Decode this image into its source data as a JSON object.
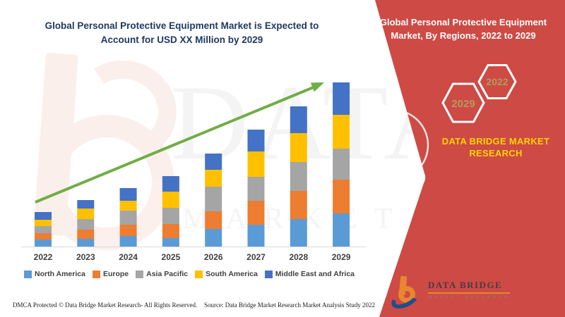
{
  "chart": {
    "title_line1": "Global Personal Protective Equipment Market is Expected to",
    "title_line2": "Account for USD XX Million by 2029",
    "title_color": "#1F3864"
  },
  "banner": {
    "title_line1": "Global Personal Protective Equipment",
    "title_line2": "Market, By Regions, 2022 to 2029",
    "hexagons": [
      "2029",
      "2022"
    ],
    "brand_line1": "DATA BRIDGE MARKET",
    "brand_line2": "RESEARCH",
    "background_color": "#CE4A45",
    "brand_text_color": "#FFD400",
    "hexagon_number_color": "#B59A5B"
  },
  "logo": {
    "name": "DATA BRIDGE",
    "subtitle": "MARKET RESEARCH"
  },
  "watermark": {
    "line1": "DATA BRIDGE",
    "line2": "MARKET RESEARCH"
  },
  "footer": {
    "dmca": "DMCA Protected © Data Bridge Market Research- All Rights Reserved.",
    "source": "Source: Data Bridge Market Research Market Analysis Study 2022"
  },
  "chart_data": {
    "type": "bar",
    "stacked": true,
    "title": "Global Personal Protective Equipment Market is Expected to Account for USD XX Million by 2029",
    "categories": [
      "2022",
      "2023",
      "2024",
      "2025",
      "2026",
      "2027",
      "2028",
      "2029"
    ],
    "series": [
      {
        "name": "North America",
        "color": "#5B9BD5",
        "values": [
          10,
          11,
          15,
          12,
          25,
          31,
          39,
          47
        ]
      },
      {
        "name": "Europe",
        "color": "#ED7D31",
        "values": [
          9,
          13,
          16,
          20,
          25,
          34,
          40,
          48
        ]
      },
      {
        "name": "Asia Pacific",
        "color": "#A5A5A5",
        "values": [
          10,
          15,
          20,
          23,
          35,
          34,
          41,
          44
        ]
      },
      {
        "name": "South America",
        "color": "#FFC000",
        "values": [
          9,
          15,
          14,
          23,
          24,
          36,
          41,
          48
        ]
      },
      {
        "name": "Middle East and Africa",
        "color": "#4472C4",
        "values": [
          11,
          12,
          18,
          22,
          23,
          31,
          38,
          46
        ]
      }
    ],
    "totals": [
      49,
      66,
      83,
      100,
      132,
      166,
      199,
      233
    ],
    "unit": "relative index (y-axis unlabeled; values estimated from bar pixel heights)",
    "xlabel": "",
    "ylabel": "",
    "y_axis_visible": false,
    "gridlines": false,
    "legend_position": "bottom",
    "trend_arrow": {
      "present": true,
      "color": "#70AD47",
      "direction": "up-right"
    }
  }
}
